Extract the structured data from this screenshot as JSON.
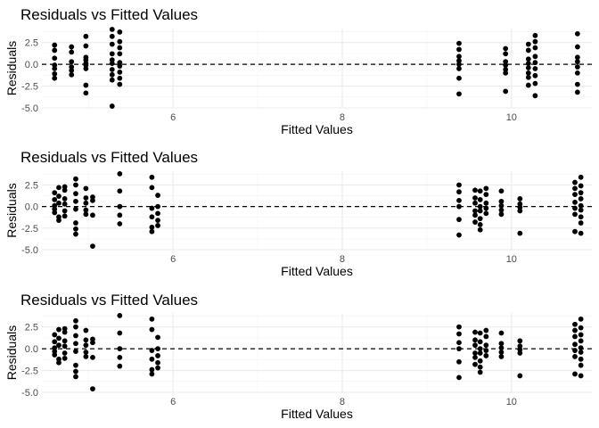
{
  "chart_data": [
    {
      "type": "scatter",
      "title": "Residuals vs Fitted Values",
      "xlabel": "Fitted Values",
      "ylabel": "Residuals",
      "xlim": [
        4.45,
        10.95
      ],
      "ylim": [
        -5.0,
        4.1
      ],
      "xticks": [
        6,
        8,
        10
      ],
      "yticks": [
        -5.0,
        -2.5,
        0.0,
        2.5
      ],
      "ytick_labels": [
        "-5.0",
        "-2.5",
        "0.0",
        "2.5"
      ],
      "grid": true,
      "reference_line": {
        "y": 0,
        "style": "dashed"
      },
      "points": [
        [
          4.6,
          2.2
        ],
        [
          4.6,
          1.6
        ],
        [
          4.6,
          0.7
        ],
        [
          4.6,
          -0.1
        ],
        [
          4.6,
          -0.5
        ],
        [
          4.6,
          -1.1
        ],
        [
          4.6,
          -1.6
        ],
        [
          4.8,
          2.0
        ],
        [
          4.8,
          1.4
        ],
        [
          4.8,
          0.3
        ],
        [
          4.8,
          -0.3
        ],
        [
          4.8,
          -0.7
        ],
        [
          4.8,
          -1.2
        ],
        [
          4.97,
          3.2
        ],
        [
          4.97,
          2.1
        ],
        [
          4.97,
          0.8
        ],
        [
          4.97,
          0.5
        ],
        [
          4.97,
          0.1
        ],
        [
          4.97,
          -0.1
        ],
        [
          4.97,
          -0.5
        ],
        [
          4.97,
          -2.4
        ],
        [
          4.97,
          -3.3
        ],
        [
          5.28,
          4.0
        ],
        [
          5.28,
          3.2
        ],
        [
          5.28,
          2.3
        ],
        [
          5.28,
          1.2
        ],
        [
          5.28,
          0.5
        ],
        [
          5.28,
          0.1
        ],
        [
          5.28,
          -0.6
        ],
        [
          5.28,
          -1.2
        ],
        [
          5.28,
          -1.8
        ],
        [
          5.28,
          -4.8
        ],
        [
          5.37,
          3.7
        ],
        [
          5.37,
          2.6
        ],
        [
          5.37,
          1.9
        ],
        [
          5.37,
          1.2
        ],
        [
          5.37,
          0.2
        ],
        [
          5.37,
          -0.2
        ],
        [
          5.37,
          -0.9
        ],
        [
          5.37,
          -1.6
        ],
        [
          5.37,
          -2.3
        ],
        [
          9.38,
          2.4
        ],
        [
          9.38,
          1.7
        ],
        [
          9.38,
          0.9
        ],
        [
          9.38,
          0.4
        ],
        [
          9.38,
          0.0
        ],
        [
          9.38,
          -0.5
        ],
        [
          9.38,
          -1.6
        ],
        [
          9.38,
          -3.4
        ],
        [
          9.93,
          1.8
        ],
        [
          9.93,
          1.2
        ],
        [
          9.93,
          0.3
        ],
        [
          9.93,
          -0.1
        ],
        [
          9.93,
          -0.6
        ],
        [
          9.93,
          -1.0
        ],
        [
          9.93,
          -3.1
        ],
        [
          10.2,
          2.3
        ],
        [
          10.2,
          1.6
        ],
        [
          10.2,
          0.6
        ],
        [
          10.2,
          0.1
        ],
        [
          10.2,
          -0.4
        ],
        [
          10.2,
          -1.0
        ],
        [
          10.2,
          -1.5
        ],
        [
          10.2,
          -2.4
        ],
        [
          10.28,
          3.3
        ],
        [
          10.28,
          2.6
        ],
        [
          10.28,
          1.9
        ],
        [
          10.28,
          0.9
        ],
        [
          10.28,
          0.2
        ],
        [
          10.28,
          -0.5
        ],
        [
          10.28,
          -1.3
        ],
        [
          10.28,
          -2.2
        ],
        [
          10.28,
          -3.6
        ],
        [
          10.78,
          3.5
        ],
        [
          10.78,
          2.0
        ],
        [
          10.78,
          0.8
        ],
        [
          10.78,
          0.3
        ],
        [
          10.78,
          -0.3
        ],
        [
          10.78,
          -1.0
        ],
        [
          10.78,
          -2.3
        ],
        [
          10.78,
          -3.2
        ]
      ]
    },
    {
      "type": "scatter",
      "title": "Residuals vs Fitted Values",
      "xlabel": "Fitted Values",
      "ylabel": "Residuals",
      "xlim": [
        4.45,
        10.95
      ],
      "ylim": [
        -5.0,
        4.1
      ],
      "xticks": [
        6,
        8,
        10
      ],
      "yticks": [
        -5.0,
        -2.5,
        0.0,
        2.5
      ],
      "ytick_labels": [
        "-5.0",
        "-2.5",
        "0.0",
        "2.5"
      ],
      "grid": true,
      "reference_line": {
        "y": 0,
        "style": "dashed"
      },
      "points": [
        [
          4.6,
          1.6
        ],
        [
          4.6,
          0.8
        ],
        [
          4.6,
          0.1
        ],
        [
          4.6,
          -0.3
        ],
        [
          4.6,
          -0.7
        ],
        [
          4.65,
          2.2
        ],
        [
          4.65,
          1.2
        ],
        [
          4.65,
          0.4
        ],
        [
          4.65,
          -1.2
        ],
        [
          4.65,
          -1.6
        ],
        [
          4.72,
          2.3
        ],
        [
          4.72,
          1.9
        ],
        [
          4.72,
          0.9
        ],
        [
          4.72,
          0.3
        ],
        [
          4.72,
          -0.5
        ],
        [
          4.72,
          -1.1
        ],
        [
          4.85,
          3.2
        ],
        [
          4.85,
          2.5
        ],
        [
          4.85,
          1.5
        ],
        [
          4.85,
          0.6
        ],
        [
          4.85,
          -0.3
        ],
        [
          4.85,
          -1.9
        ],
        [
          4.85,
          -2.6
        ],
        [
          4.85,
          -3.2
        ],
        [
          4.97,
          2.1
        ],
        [
          4.97,
          1.0
        ],
        [
          4.97,
          0.4
        ],
        [
          4.97,
          -0.4
        ],
        [
          4.97,
          -0.9
        ],
        [
          5.05,
          1.1
        ],
        [
          5.05,
          0.7
        ],
        [
          5.05,
          -1.0
        ],
        [
          5.05,
          -4.6
        ],
        [
          5.37,
          3.8
        ],
        [
          5.37,
          1.8
        ],
        [
          5.37,
          0.0
        ],
        [
          5.37,
          -1.0
        ],
        [
          5.37,
          -2.0
        ],
        [
          5.75,
          3.4
        ],
        [
          5.75,
          2.2
        ],
        [
          5.75,
          -0.2
        ],
        [
          5.75,
          -1.2
        ],
        [
          5.75,
          -2.4
        ],
        [
          5.75,
          -2.9
        ],
        [
          5.82,
          1.3
        ],
        [
          5.82,
          0.0
        ],
        [
          5.82,
          -0.8
        ],
        [
          5.82,
          -1.6
        ],
        [
          5.82,
          -2.2
        ],
        [
          9.38,
          2.5
        ],
        [
          9.38,
          1.7
        ],
        [
          9.38,
          0.7
        ],
        [
          9.38,
          0.0
        ],
        [
          9.38,
          -1.5
        ],
        [
          9.38,
          -3.3
        ],
        [
          9.57,
          1.9
        ],
        [
          9.57,
          1.0
        ],
        [
          9.57,
          0.4
        ],
        [
          9.57,
          -0.5
        ],
        [
          9.57,
          -1.0
        ],
        [
          9.57,
          -1.8
        ],
        [
          9.63,
          1.8
        ],
        [
          9.63,
          0.8
        ],
        [
          9.63,
          0.0
        ],
        [
          9.63,
          -0.5
        ],
        [
          9.63,
          -1.4
        ],
        [
          9.63,
          -2.1
        ],
        [
          9.63,
          -2.7
        ],
        [
          9.7,
          2.1
        ],
        [
          9.7,
          1.4
        ],
        [
          9.7,
          0.4
        ],
        [
          9.7,
          -0.2
        ],
        [
          9.7,
          -0.8
        ],
        [
          9.88,
          1.8
        ],
        [
          9.88,
          0.6
        ],
        [
          9.88,
          0.1
        ],
        [
          9.88,
          -0.4
        ],
        [
          9.88,
          -0.9
        ],
        [
          10.1,
          0.9
        ],
        [
          10.1,
          0.3
        ],
        [
          10.1,
          -0.1
        ],
        [
          10.1,
          -0.5
        ],
        [
          10.1,
          -3.1
        ],
        [
          10.75,
          2.8
        ],
        [
          10.75,
          2.1
        ],
        [
          10.75,
          1.4
        ],
        [
          10.75,
          0.5
        ],
        [
          10.75,
          -0.2
        ],
        [
          10.75,
          -0.9
        ],
        [
          10.75,
          -2.9
        ],
        [
          10.82,
          3.4
        ],
        [
          10.82,
          2.4
        ],
        [
          10.82,
          1.6
        ],
        [
          10.82,
          0.9
        ],
        [
          10.82,
          0.1
        ],
        [
          10.82,
          -0.4
        ],
        [
          10.82,
          -1.2
        ],
        [
          10.82,
          -1.9
        ],
        [
          10.82,
          -3.1
        ]
      ]
    },
    {
      "type": "scatter",
      "title": "Residuals vs Fitted Values",
      "xlabel": "Fitted Values",
      "ylabel": "Residuals",
      "xlim": [
        4.45,
        10.95
      ],
      "ylim": [
        -5.0,
        4.1
      ],
      "xticks": [
        6,
        8,
        10
      ],
      "yticks": [
        -5.0,
        -2.5,
        0.0,
        2.5
      ],
      "ytick_labels": [
        "-5.0",
        "-2.5",
        "0.0",
        "2.5"
      ],
      "grid": true,
      "reference_line": {
        "y": 0,
        "style": "dashed"
      },
      "points": [
        [
          4.6,
          1.6
        ],
        [
          4.6,
          0.8
        ],
        [
          4.6,
          0.1
        ],
        [
          4.6,
          -0.3
        ],
        [
          4.6,
          -0.7
        ],
        [
          4.65,
          2.2
        ],
        [
          4.65,
          1.2
        ],
        [
          4.65,
          0.4
        ],
        [
          4.65,
          -1.2
        ],
        [
          4.65,
          -1.6
        ],
        [
          4.72,
          2.3
        ],
        [
          4.72,
          1.9
        ],
        [
          4.72,
          0.9
        ],
        [
          4.72,
          0.3
        ],
        [
          4.72,
          -0.5
        ],
        [
          4.72,
          -1.1
        ],
        [
          4.85,
          3.2
        ],
        [
          4.85,
          2.5
        ],
        [
          4.85,
          1.5
        ],
        [
          4.85,
          0.6
        ],
        [
          4.85,
          -0.3
        ],
        [
          4.85,
          -1.9
        ],
        [
          4.85,
          -2.6
        ],
        [
          4.85,
          -3.2
        ],
        [
          4.97,
          2.1
        ],
        [
          4.97,
          1.0
        ],
        [
          4.97,
          0.4
        ],
        [
          4.97,
          -0.4
        ],
        [
          4.97,
          -0.9
        ],
        [
          5.05,
          1.1
        ],
        [
          5.05,
          0.7
        ],
        [
          5.05,
          -1.0
        ],
        [
          5.05,
          -4.6
        ],
        [
          5.37,
          3.8
        ],
        [
          5.37,
          1.8
        ],
        [
          5.37,
          0.0
        ],
        [
          5.37,
          -1.0
        ],
        [
          5.37,
          -2.0
        ],
        [
          5.75,
          3.4
        ],
        [
          5.75,
          2.2
        ],
        [
          5.75,
          -0.2
        ],
        [
          5.75,
          -1.2
        ],
        [
          5.75,
          -2.4
        ],
        [
          5.75,
          -2.9
        ],
        [
          5.82,
          1.3
        ],
        [
          5.82,
          0.0
        ],
        [
          5.82,
          -0.8
        ],
        [
          5.82,
          -1.6
        ],
        [
          5.82,
          -2.2
        ],
        [
          9.38,
          2.5
        ],
        [
          9.38,
          1.7
        ],
        [
          9.38,
          0.7
        ],
        [
          9.38,
          0.0
        ],
        [
          9.38,
          -1.5
        ],
        [
          9.38,
          -3.3
        ],
        [
          9.57,
          1.9
        ],
        [
          9.57,
          1.0
        ],
        [
          9.57,
          0.4
        ],
        [
          9.57,
          -0.5
        ],
        [
          9.57,
          -1.0
        ],
        [
          9.57,
          -1.8
        ],
        [
          9.63,
          1.8
        ],
        [
          9.63,
          0.8
        ],
        [
          9.63,
          0.0
        ],
        [
          9.63,
          -0.5
        ],
        [
          9.63,
          -1.4
        ],
        [
          9.63,
          -2.1
        ],
        [
          9.63,
          -2.7
        ],
        [
          9.7,
          2.1
        ],
        [
          9.7,
          1.4
        ],
        [
          9.7,
          0.4
        ],
        [
          9.7,
          -0.2
        ],
        [
          9.7,
          -0.8
        ],
        [
          9.88,
          1.8
        ],
        [
          9.88,
          0.6
        ],
        [
          9.88,
          0.1
        ],
        [
          9.88,
          -0.4
        ],
        [
          9.88,
          -0.9
        ],
        [
          10.1,
          0.9
        ],
        [
          10.1,
          0.3
        ],
        [
          10.1,
          -0.1
        ],
        [
          10.1,
          -0.5
        ],
        [
          10.1,
          -3.1
        ],
        [
          10.75,
          2.8
        ],
        [
          10.75,
          2.1
        ],
        [
          10.75,
          1.4
        ],
        [
          10.75,
          0.5
        ],
        [
          10.75,
          -0.2
        ],
        [
          10.75,
          -0.9
        ],
        [
          10.75,
          -2.9
        ],
        [
          10.82,
          3.4
        ],
        [
          10.82,
          2.4
        ],
        [
          10.82,
          1.6
        ],
        [
          10.82,
          0.9
        ],
        [
          10.82,
          0.1
        ],
        [
          10.82,
          -0.4
        ],
        [
          10.82,
          -1.2
        ],
        [
          10.82,
          -1.9
        ],
        [
          10.82,
          -3.1
        ]
      ]
    }
  ]
}
